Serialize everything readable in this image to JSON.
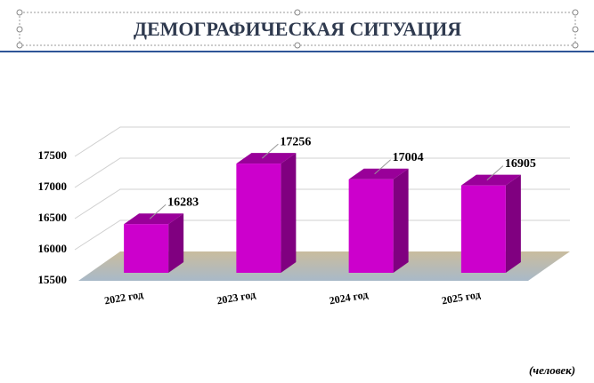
{
  "chart_data": {
    "type": "bar3d",
    "title": "ДЕМОГРАФИЧЕСКАЯ СИТУАЦИЯ",
    "note": "(человек)",
    "categories": [
      "2022 год",
      "2023 год",
      "2024 год",
      "2025 год"
    ],
    "values": [
      16283,
      17256,
      17004,
      16905
    ],
    "color": "#cc00cc",
    "ylim": [
      15500,
      17500
    ],
    "yticks": [
      15500,
      16000,
      16500,
      17000,
      17500
    ],
    "grid": true
  }
}
